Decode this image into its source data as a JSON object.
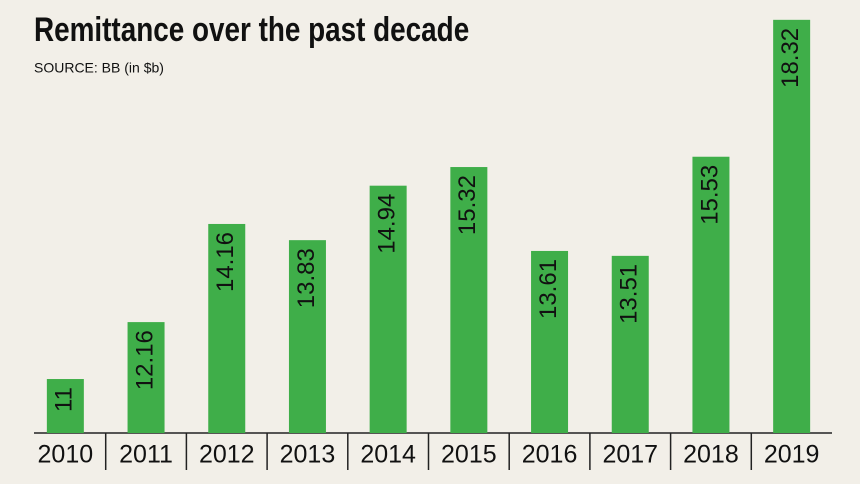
{
  "chart_data": {
    "type": "bar",
    "title": "Remittance over the past decade",
    "subtitle": "SOURCE: BB (in $b)",
    "categories": [
      "2010",
      "2011",
      "2012",
      "2013",
      "2014",
      "2015",
      "2016",
      "2017",
      "2018",
      "2019"
    ],
    "values": [
      11,
      12.16,
      14.16,
      13.83,
      14.94,
      15.32,
      13.61,
      13.51,
      15.53,
      18.32
    ],
    "color": "#3fae49",
    "ylim": [
      9.9,
      18.5
    ]
  }
}
